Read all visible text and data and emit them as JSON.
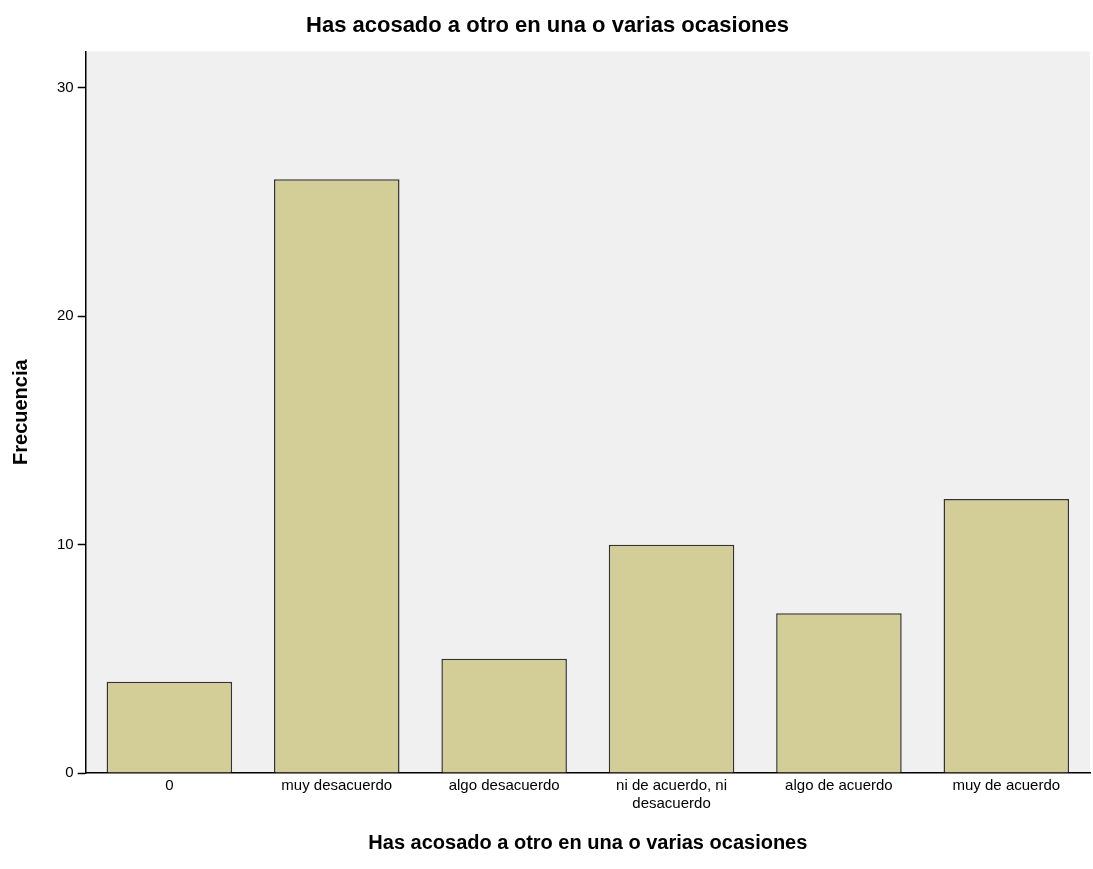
{
  "chart_data": {
    "type": "bar",
    "title": "Has acosado a otro en una o varias ocasiones",
    "xlabel": "Has acosado a otro en una o varias ocasiones",
    "ylabel": "Frecuencia",
    "categories": [
      "0",
      "muy desacuerdo",
      "algo desacuerdo",
      "ni de acuerdo, ni desacuerdo",
      "algo de acuerdo",
      "muy de acuerdo"
    ],
    "values": [
      4,
      26,
      5,
      10,
      7,
      12
    ],
    "color": "#d3ce97",
    "ylim": [
      0,
      31.6
    ],
    "yticks": [
      0,
      10,
      20,
      30
    ],
    "grid": false,
    "legend": false
  }
}
